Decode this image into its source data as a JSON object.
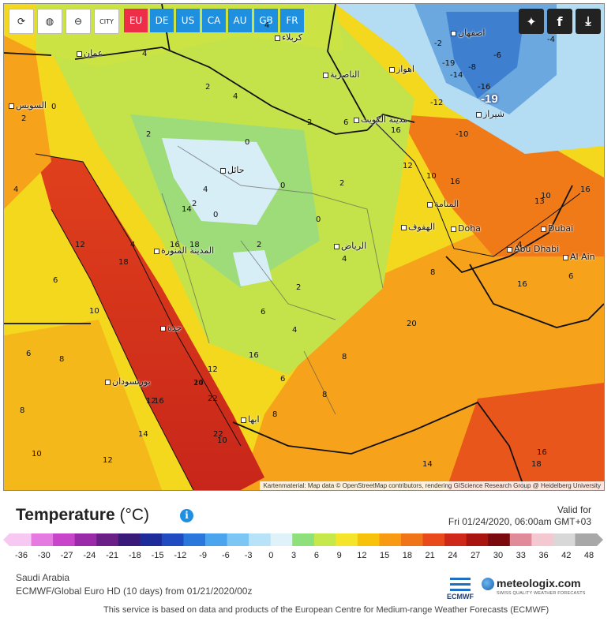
{
  "toolbar": {
    "reload_icon": "reload-icon",
    "globe_icon": "globe-icon",
    "zoom_out_icon": "zoom-out-icon",
    "city_toggle_label": "CITY",
    "regions": [
      "EU",
      "DE",
      "US",
      "CA",
      "AU",
      "GB",
      "FR"
    ],
    "active_region": "EU",
    "share_icons": [
      "twitter-icon",
      "facebook-icon",
      "download-icon"
    ]
  },
  "map": {
    "value_labels": [
      "2",
      "4",
      "2",
      "0",
      "2",
      "4",
      "6",
      "4",
      "2",
      "4",
      "0",
      "2",
      "0",
      "4",
      "4",
      "6",
      "8",
      "10",
      "12",
      "14",
      "16",
      "14",
      "18",
      "16",
      "12",
      "10",
      "8",
      "6",
      "4",
      "2",
      "0",
      "-2",
      "-4",
      "-6",
      "-8",
      "-10",
      "-12",
      "-14",
      "-16",
      "-19",
      "4",
      "8",
      "16",
      "18",
      "20",
      "22",
      "22",
      "12",
      "8",
      "6",
      "4",
      "2",
      "2",
      "0",
      "6",
      "8",
      "10",
      "12",
      "14",
      "16",
      "16",
      "12",
      "10",
      "14",
      "16",
      "18",
      "20",
      "16",
      "13",
      "10",
      "16",
      "6",
      "8"
    ],
    "big_value": "-19",
    "cities": [
      {
        "name": "عمان"
      },
      {
        "name": "كربلاء"
      },
      {
        "name": "اصفهان"
      },
      {
        "name": "الناصرية"
      },
      {
        "name": "اهواز"
      },
      {
        "name": "السويس"
      },
      {
        "name": "مدينة الكويت"
      },
      {
        "name": "شيراز"
      },
      {
        "name": "حائل"
      },
      {
        "name": "المنامة"
      },
      {
        "name": "الهفوف"
      },
      {
        "name": "Doha"
      },
      {
        "name": "Dubai"
      },
      {
        "name": "Abu Dhabi"
      },
      {
        "name": "Al Ain"
      },
      {
        "name": "المدينة المنورة"
      },
      {
        "name": "الرياض"
      },
      {
        "name": "جدة"
      },
      {
        "name": "بورتسودان"
      },
      {
        "name": "ابها"
      }
    ],
    "attribution": "Kartenmaterial: Map data © OpenStreetMap contributors, rendering GIScience Research Group @ Heidelberg University"
  },
  "legend": {
    "title": "Temperature",
    "unit": "(°C)",
    "valid_for_label": "Valid for",
    "valid_time": "Fri 01/24/2020, 06:00am GMT+03",
    "ticks": [
      "-36",
      "-30",
      "-27",
      "-24",
      "-21",
      "-18",
      "-15",
      "-12",
      "-9",
      "-6",
      "-3",
      "0",
      "3",
      "6",
      "9",
      "12",
      "15",
      "18",
      "21",
      "24",
      "27",
      "30",
      "33",
      "36",
      "42",
      "48"
    ],
    "colors": [
      "#f7c8f2",
      "#e57ae0",
      "#c844c8",
      "#9a2aa8",
      "#6a1e86",
      "#3a1a78",
      "#1e2c9a",
      "#1f4cc0",
      "#2a78dc",
      "#4aa4ee",
      "#7cc6f6",
      "#b8e2f8",
      "#dff2fa",
      "#8ee07a",
      "#c6e84a",
      "#f4e42a",
      "#f8c20a",
      "#f89a12",
      "#f07418",
      "#e84a1c",
      "#d02818",
      "#a81410",
      "#7a0a0e",
      "#e08a9a",
      "#f4c8d0",
      "#d8d8d8",
      "#a8a8a8"
    ]
  },
  "meta": {
    "location": "Saudi Arabia",
    "model_line": "ECMWF/Global Euro HD (10 days) from 01/21/2020/00z",
    "ecmwf_label": "ECMWF",
    "brand": "meteologix.com",
    "brand_tagline": "SWISS QUALITY WEATHER FORECASTS",
    "footer": "This service is based on data and products of the European Centre for Medium-range Weather Forecasts (ECMWF)"
  }
}
